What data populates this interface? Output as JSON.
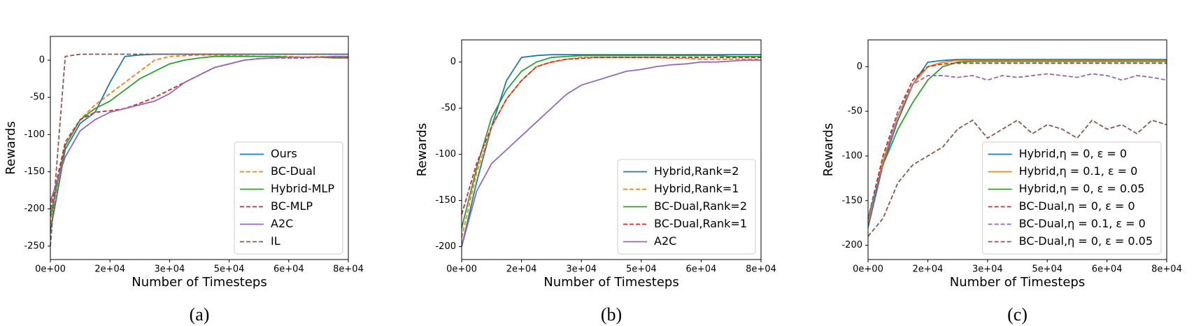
{
  "chart_data": [
    {
      "type": "line",
      "caption": "(a)",
      "xlabel": "Number of Timesteps",
      "ylabel": "Rewards",
      "x": [
        0,
        4000,
        8000,
        12000,
        16000,
        20000,
        24000,
        28000,
        32000,
        36000,
        40000,
        44000,
        48000,
        52000,
        56000,
        60000,
        64000,
        68000,
        72000,
        76000,
        80000
      ],
      "xlim": [
        0,
        80000
      ],
      "ylim": [
        -268,
        32
      ],
      "xticks": [
        {
          "value": 0,
          "label": "0e+00"
        },
        {
          "value": 16000,
          "label": "2e+04"
        },
        {
          "value": 32000,
          "label": "3e+04"
        },
        {
          "value": 48000,
          "label": "5e+04"
        },
        {
          "value": 64000,
          "label": "6e+04"
        },
        {
          "value": 80000,
          "label": "8e+04"
        }
      ],
      "yticks": [
        -250,
        -200,
        -150,
        -100,
        -50,
        0
      ],
      "legend": "lower right",
      "series": [
        {
          "name": "Ours",
          "color": "#1f77b4",
          "linestyle": "solid",
          "values": [
            -230,
            -120,
            -85,
            -70,
            -30,
            5,
            7,
            8,
            8,
            8,
            8,
            8,
            8,
            8,
            8,
            8,
            8,
            8,
            8,
            8,
            8
          ]
        },
        {
          "name": "BC-Dual",
          "color": "#ff7f0e",
          "linestyle": "dashed",
          "values": [
            -220,
            -115,
            -80,
            -60,
            -45,
            -30,
            -15,
            0,
            5,
            6,
            7,
            7,
            6,
            6,
            5,
            5,
            5,
            4,
            5,
            4,
            4
          ]
        },
        {
          "name": "Hybrid-MLP",
          "color": "#2ca02c",
          "linestyle": "solid",
          "values": [
            -210,
            -115,
            -80,
            -65,
            -55,
            -40,
            -25,
            -15,
            -5,
            0,
            3,
            5,
            5,
            5,
            5,
            5,
            4,
            4,
            4,
            3,
            3
          ]
        },
        {
          "name": "BC-MLP",
          "color": "#d62728",
          "linestyle": "dashed",
          "values": [
            -200,
            -110,
            -80,
            -70,
            -68,
            -65,
            -58,
            -50,
            -40,
            -30,
            -20,
            -10,
            -5,
            0,
            2,
            3,
            3,
            3,
            4,
            4,
            4
          ]
        },
        {
          "name": "A2C",
          "color": "#9467bd",
          "linestyle": "solid",
          "values": [
            -190,
            -130,
            -95,
            -80,
            -70,
            -65,
            -60,
            -55,
            -45,
            -30,
            -20,
            -10,
            -5,
            0,
            2,
            3,
            4,
            4,
            4,
            5,
            5
          ]
        },
        {
          "name": "IL",
          "color": "#8c564b",
          "linestyle": "dashed",
          "values": [
            -250,
            5,
            8,
            8,
            8,
            8,
            8,
            8,
            8,
            8,
            8,
            8,
            8,
            8,
            8,
            8,
            8,
            8,
            8,
            8,
            8
          ]
        }
      ]
    },
    {
      "type": "line",
      "caption": "(b)",
      "xlabel": "Number of Timesteps",
      "ylabel": "Rewards",
      "x": [
        0,
        4000,
        8000,
        12000,
        16000,
        20000,
        24000,
        28000,
        32000,
        36000,
        40000,
        44000,
        48000,
        52000,
        56000,
        60000,
        64000,
        68000,
        72000,
        76000,
        80000
      ],
      "xlim": [
        0,
        80000
      ],
      "ylim": [
        -214,
        24
      ],
      "xticks": [
        {
          "value": 0,
          "label": "0e+00"
        },
        {
          "value": 16000,
          "label": "2e+04"
        },
        {
          "value": 32000,
          "label": "3e+04"
        },
        {
          "value": 48000,
          "label": "5e+04"
        },
        {
          "value": 64000,
          "label": "6e+04"
        },
        {
          "value": 80000,
          "label": "8e+04"
        }
      ],
      "yticks": [
        -200,
        -150,
        -100,
        -50,
        0
      ],
      "legend": "lower right",
      "series": [
        {
          "name": "Hybrid,Rank=2",
          "color": "#1f77b4",
          "linestyle": "solid",
          "values": [
            -200,
            -130,
            -70,
            -20,
            5,
            7,
            8,
            8,
            8,
            8,
            8,
            8,
            8,
            8,
            8,
            8,
            8,
            8,
            8,
            8,
            8
          ]
        },
        {
          "name": "Hybrid,Rank=1",
          "color": "#ff7f0e",
          "linestyle": "dashed",
          "values": [
            -190,
            -120,
            -70,
            -40,
            -20,
            -5,
            0,
            3,
            5,
            5,
            5,
            5,
            5,
            5,
            4,
            4,
            3,
            3,
            3,
            3,
            3
          ]
        },
        {
          "name": "BC-Dual,Rank=2",
          "color": "#2ca02c",
          "linestyle": "solid",
          "values": [
            -180,
            -115,
            -60,
            -30,
            -10,
            0,
            5,
            6,
            7,
            7,
            7,
            7,
            7,
            7,
            7,
            7,
            7,
            7,
            6,
            6,
            6
          ]
        },
        {
          "name": "BC-Dual,Rank=1",
          "color": "#d62728",
          "linestyle": "dashed",
          "values": [
            -165,
            -110,
            -70,
            -40,
            -20,
            -5,
            0,
            3,
            4,
            5,
            5,
            5,
            5,
            5,
            5,
            5,
            5,
            5,
            5,
            5,
            5
          ]
        },
        {
          "name": "A2C",
          "color": "#9467bd",
          "linestyle": "solid",
          "values": [
            -200,
            -140,
            -110,
            -95,
            -80,
            -65,
            -50,
            -35,
            -25,
            -20,
            -15,
            -10,
            -8,
            -5,
            -3,
            -2,
            0,
            0,
            1,
            2,
            2
          ]
        }
      ]
    },
    {
      "type": "line",
      "caption": "(c)",
      "xlabel": "Number of Timesteps",
      "ylabel": "Rewards",
      "x": [
        0,
        4000,
        8000,
        12000,
        16000,
        20000,
        24000,
        28000,
        32000,
        36000,
        40000,
        44000,
        48000,
        52000,
        56000,
        60000,
        64000,
        68000,
        72000,
        76000,
        80000
      ],
      "xlim": [
        0,
        80000
      ],
      "ylim": [
        -216,
        30
      ],
      "xticks": [
        {
          "value": 0,
          "label": "0e+00"
        },
        {
          "value": 16000,
          "label": "2e+04"
        },
        {
          "value": 32000,
          "label": "3e+04"
        },
        {
          "value": 48000,
          "label": "5e+04"
        },
        {
          "value": 64000,
          "label": "6e+04"
        },
        {
          "value": 80000,
          "label": "8e+04"
        }
      ],
      "yticks": [
        -200,
        -150,
        -100,
        -50,
        0
      ],
      "legend": "lower right",
      "series": [
        {
          "name": "Hybrid,η = 0, ε = 0",
          "color": "#1f77b4",
          "linestyle": "solid",
          "values": [
            -180,
            -110,
            -60,
            -20,
            5,
            7,
            8,
            8,
            8,
            8,
            8,
            8,
            8,
            8,
            8,
            8,
            8,
            8,
            8,
            8,
            8
          ]
        },
        {
          "name": "Hybrid,η = 0.1, ε = 0",
          "color": "#ff7f0e",
          "linestyle": "solid",
          "values": [
            -175,
            -105,
            -55,
            -20,
            0,
            5,
            7,
            7,
            7,
            7,
            7,
            7,
            7,
            7,
            7,
            7,
            7,
            7,
            7,
            7,
            7
          ]
        },
        {
          "name": "Hybrid,η = 0, ε = 0.05",
          "color": "#2ca02c",
          "linestyle": "solid",
          "values": [
            -170,
            -110,
            -70,
            -40,
            -15,
            0,
            5,
            6,
            6,
            6,
            6,
            6,
            6,
            6,
            6,
            6,
            6,
            6,
            6,
            6,
            6
          ]
        },
        {
          "name": "BC-Dual,η = 0, ε = 0",
          "color": "#d62728",
          "linestyle": "dashed",
          "values": [
            -170,
            -100,
            -50,
            -15,
            0,
            3,
            4,
            4,
            4,
            4,
            4,
            4,
            4,
            4,
            4,
            4,
            4,
            4,
            4,
            4,
            4
          ]
        },
        {
          "name": "BC-Dual,η = 0.1, ε = 0",
          "color": "#9467bd",
          "linestyle": "dashed",
          "values": [
            -170,
            -110,
            -50,
            -20,
            -10,
            -10,
            -12,
            -10,
            -15,
            -10,
            -12,
            -10,
            -8,
            -10,
            -12,
            -8,
            -10,
            -15,
            -10,
            -12,
            -15
          ]
        },
        {
          "name": "BC-Dual,η = 0, ε = 0.05",
          "color": "#8c564b",
          "linestyle": "dashed",
          "values": [
            -190,
            -170,
            -130,
            -110,
            -100,
            -90,
            -70,
            -60,
            -80,
            -70,
            -60,
            -75,
            -65,
            -70,
            -80,
            -60,
            -70,
            -65,
            -75,
            -60,
            -65
          ]
        }
      ]
    }
  ]
}
